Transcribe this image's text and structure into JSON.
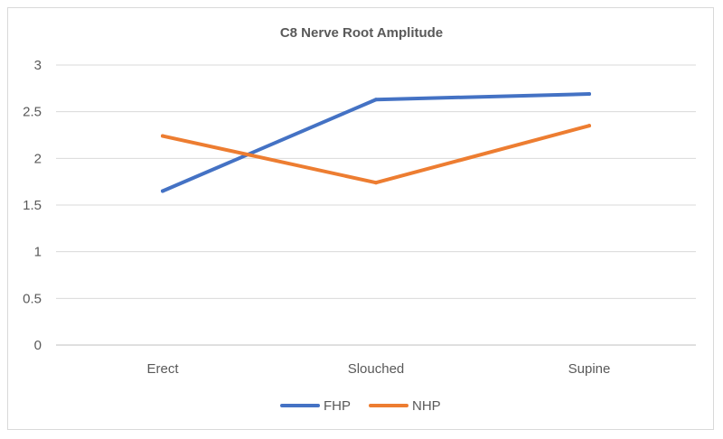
{
  "chart_data": {
    "type": "line",
    "title": "C8 Nerve Root Amplitude",
    "xlabel": "",
    "ylabel": "",
    "categories": [
      "Erect",
      "Slouched",
      "Supine"
    ],
    "series": [
      {
        "name": "FHP",
        "values": [
          1.65,
          2.63,
          2.69
        ],
        "color": "#4472C4"
      },
      {
        "name": "NHP",
        "values": [
          2.24,
          1.74,
          2.35
        ],
        "color": "#ED7D31"
      }
    ],
    "ylim": [
      0,
      3
    ],
    "yticks": [
      "0",
      "0.5",
      "1",
      "1.5",
      "2",
      "2.5",
      "3"
    ],
    "grid": true,
    "legend": "bottom"
  }
}
